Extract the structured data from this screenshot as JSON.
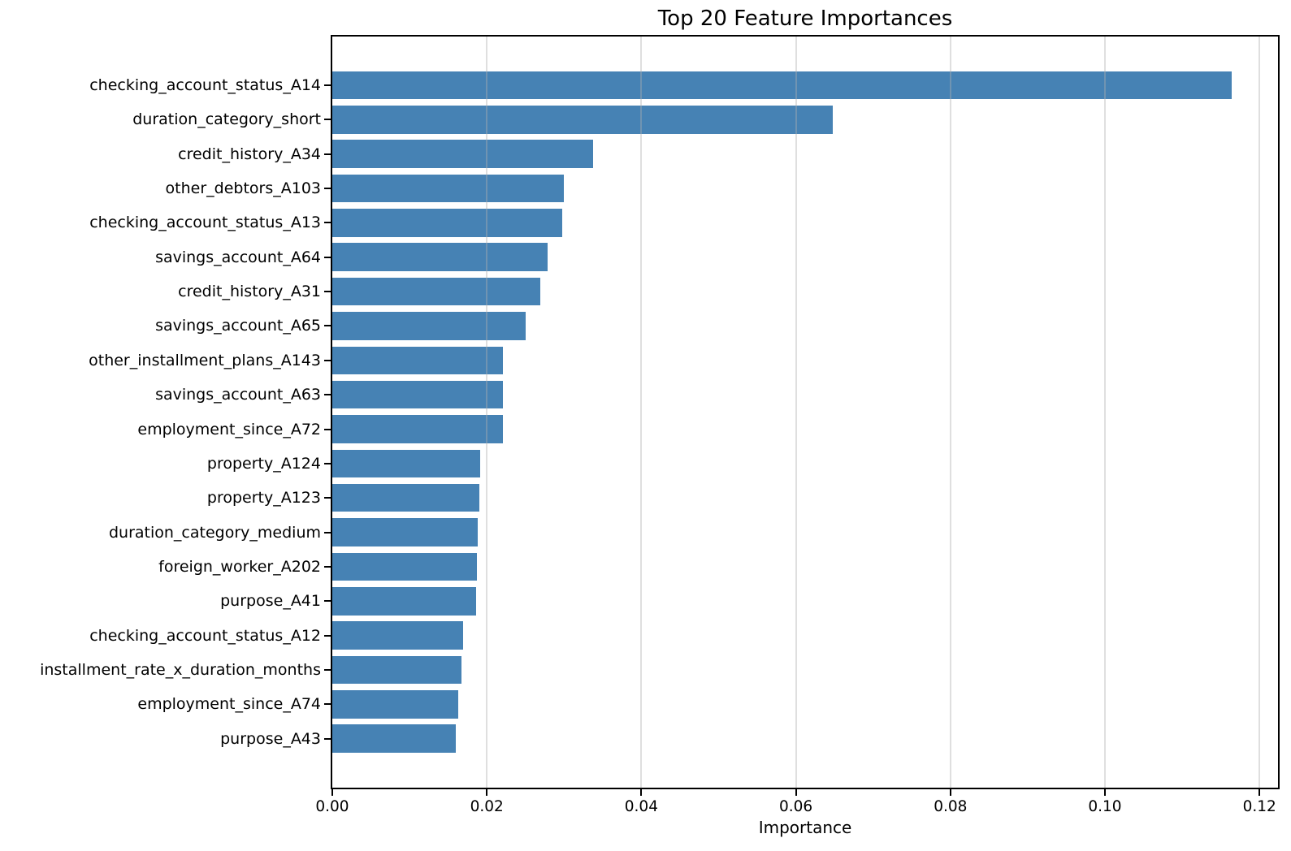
{
  "chart_data": {
    "type": "bar",
    "orientation": "horizontal",
    "title": "Top 20 Feature Importances",
    "xlabel": "Importance",
    "ylabel": "",
    "categories": [
      "checking_account_status_A14",
      "duration_category_short",
      "credit_history_A34",
      "other_debtors_A103",
      "checking_account_status_A13",
      "savings_account_A64",
      "credit_history_A31",
      "savings_account_A65",
      "other_installment_plans_A143",
      "savings_account_A63",
      "employment_since_A72",
      "property_A124",
      "property_A123",
      "duration_category_medium",
      "foreign_worker_A202",
      "purpose_A41",
      "checking_account_status_A12",
      "installment_rate_x_duration_months",
      "employment_since_A74",
      "purpose_A43"
    ],
    "values": [
      0.1164,
      0.0648,
      0.0337,
      0.03,
      0.0298,
      0.0279,
      0.0269,
      0.025,
      0.0221,
      0.0221,
      0.0221,
      0.0191,
      0.019,
      0.0188,
      0.0187,
      0.0186,
      0.0169,
      0.0167,
      0.0163,
      0.016
    ],
    "xlim": [
      0.0,
      0.1224
    ],
    "xticks": [
      0.0,
      0.02,
      0.04,
      0.06,
      0.08,
      0.1,
      0.12
    ],
    "xtick_labels": [
      "0.00",
      "0.02",
      "0.04",
      "0.06",
      "0.08",
      "0.10",
      "0.12"
    ],
    "bar_color": "#4682B4",
    "grid": {
      "axis": "x",
      "color": "#b0b0b0",
      "alpha": 0.4,
      "drawn_over_bars": true
    },
    "legend": null
  }
}
